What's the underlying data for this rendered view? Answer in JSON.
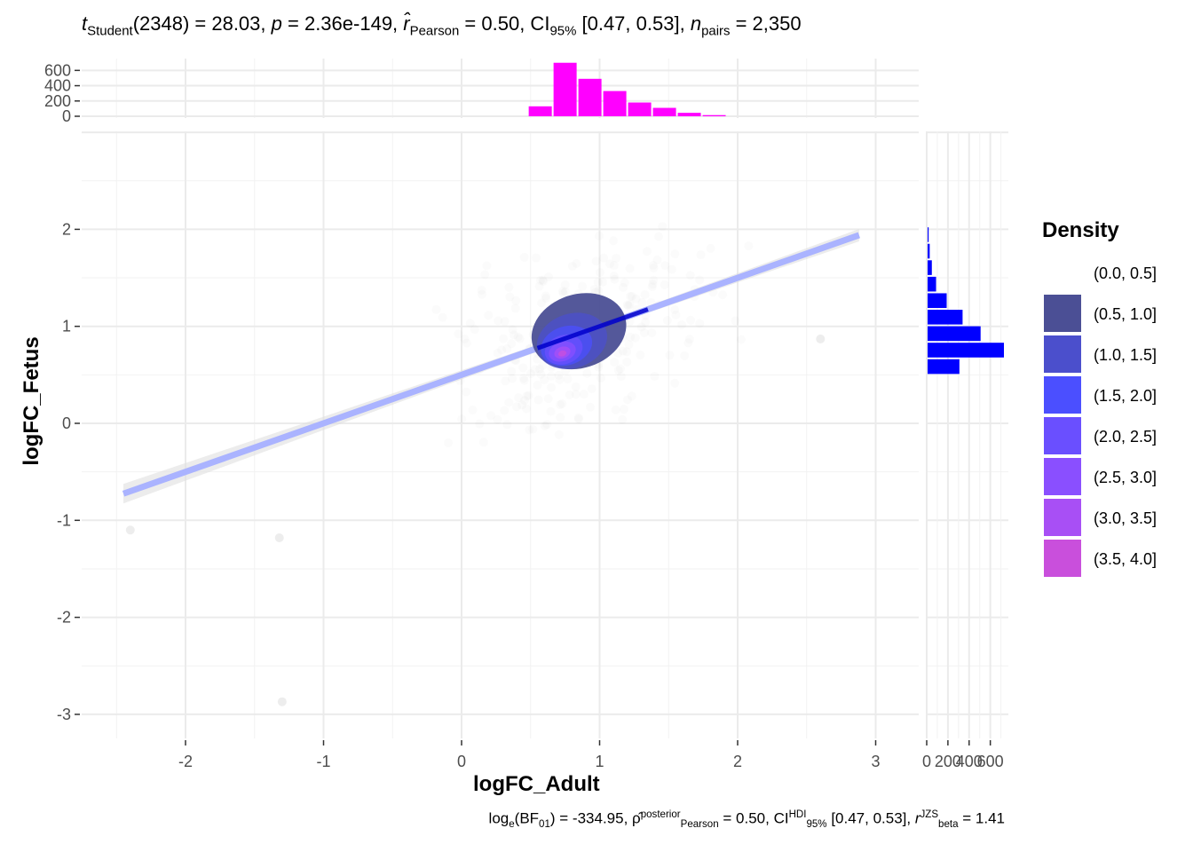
{
  "subtitle": {
    "t_sym": "t",
    "t_sub": "Student",
    "df": "(2348) = 28.03, ",
    "p_sym": "p",
    "p_val": " = 2.36e-149, ",
    "r_sym": "r̂",
    "r_sub": "Pearson",
    "r_val": " = 0.50, CI",
    "ci_sub": "95%",
    "ci_val": " [0.47, 0.53], ",
    "n_sym": "n",
    "n_sub": "pairs",
    "n_val": " = 2,350"
  },
  "caption": {
    "log_pre": "log",
    "log_sub": "e",
    "bf": "(BF",
    "bf_sub": "01",
    "bf_val": ") = -334.95, ",
    "rho_sym": "ρ̂",
    "rho_sup": "posterior",
    "rho_sub": "Pearson",
    "rho_val": " = 0.50, CI",
    "hdi_sup": "HDI",
    "hdi_sub": "95%",
    "hdi_val": " [0.47, 0.53], ",
    "rjzs_sym": "r",
    "rjzs_sup": "JZS",
    "rjzs_sub": "beta",
    "rjzs_val": " = 1.41"
  },
  "chart_data": {
    "type": "scatter",
    "xlabel": "logFC_Adult",
    "ylabel": "logFC_Fetus",
    "xlim": [
      -2.5,
      3.3
    ],
    "ylim": [
      -3.3,
      3.0
    ],
    "x_ticks": [
      -2,
      -1,
      0,
      1,
      2,
      3
    ],
    "y_ticks": [
      -3,
      -2,
      -1,
      0,
      1,
      2
    ],
    "x_tick_labels": [
      "-2",
      "-1",
      "0",
      "1",
      "2",
      "3"
    ],
    "y_tick_labels": [
      "-3",
      "-2",
      "-1",
      "0",
      "1",
      "2"
    ],
    "grid": true,
    "regression": {
      "intercept": 0.5,
      "slope": 0.5,
      "x_range": [
        -2.45,
        2.88
      ],
      "color": "#aab3ff"
    },
    "density_contours": [
      {
        "level": "(0.5, 1.0]",
        "center": [
          0.85,
          0.95
        ],
        "rx": 0.35,
        "ry": 0.38
      },
      {
        "level": "(1.0, 1.5]",
        "center": [
          0.8,
          0.85
        ],
        "rx": 0.26,
        "ry": 0.28
      },
      {
        "level": "(1.5, 2.0]",
        "center": [
          0.76,
          0.8
        ],
        "rx": 0.19,
        "ry": 0.2
      },
      {
        "level": "(2.0, 2.5]",
        "center": [
          0.74,
          0.76
        ],
        "rx": 0.14,
        "ry": 0.15
      },
      {
        "level": "(2.5, 3.0]",
        "center": [
          0.73,
          0.74
        ],
        "rx": 0.1,
        "ry": 0.1
      },
      {
        "level": "(3.0, 3.5]",
        "center": [
          0.73,
          0.73
        ],
        "rx": 0.06,
        "ry": 0.06
      },
      {
        "level": "(3.5, 4.0]",
        "center": [
          0.73,
          0.72
        ],
        "rx": 0.03,
        "ry": 0.03
      }
    ],
    "outliers": [
      [
        2.6,
        0.87
      ],
      [
        -1.3,
        -2.87
      ],
      [
        -1.32,
        -1.18
      ],
      [
        -2.4,
        -1.1
      ]
    ],
    "x_marginal": {
      "color": "#ff00ff",
      "ylim": [
        0,
        720
      ],
      "y_ticks": [
        0,
        200,
        400,
        600
      ],
      "y_tick_labels": [
        "0",
        "200",
        "400",
        "600"
      ],
      "bins": [
        {
          "x0": 0.48,
          "x1": 0.66,
          "count": 130
        },
        {
          "x0": 0.66,
          "x1": 0.84,
          "count": 700
        },
        {
          "x0": 0.84,
          "x1": 1.02,
          "count": 490
        },
        {
          "x0": 1.02,
          "x1": 1.2,
          "count": 330
        },
        {
          "x0": 1.2,
          "x1": 1.38,
          "count": 180
        },
        {
          "x0": 1.38,
          "x1": 1.56,
          "count": 110
        },
        {
          "x0": 1.56,
          "x1": 1.74,
          "count": 45
        },
        {
          "x0": 1.74,
          "x1": 1.92,
          "count": 15
        }
      ]
    },
    "y_marginal": {
      "color": "#0000ff",
      "xlim": [
        0,
        720
      ],
      "x_ticks": [
        0,
        200,
        400,
        600
      ],
      "x_tick_labels": [
        "0",
        "200",
        "400",
        "600"
      ],
      "bins": [
        {
          "y0": 0.5,
          "y1": 0.67,
          "count": 300
        },
        {
          "y0": 0.67,
          "y1": 0.84,
          "count": 720
        },
        {
          "y0": 0.84,
          "y1": 1.01,
          "count": 500
        },
        {
          "y0": 1.01,
          "y1": 1.18,
          "count": 330
        },
        {
          "y0": 1.18,
          "y1": 1.35,
          "count": 180
        },
        {
          "y0": 1.35,
          "y1": 1.52,
          "count": 80
        },
        {
          "y0": 1.52,
          "y1": 1.69,
          "count": 40
        },
        {
          "y0": 1.69,
          "y1": 1.86,
          "count": 20
        },
        {
          "y0": 1.86,
          "y1": 2.03,
          "count": 10
        }
      ]
    },
    "legend": {
      "title": "Density",
      "placement": "right",
      "entries": [
        {
          "label": "(0.0, 0.5]",
          "color": "#ffffff"
        },
        {
          "label": "(0.5, 1.0]",
          "color": "#4b4f95"
        },
        {
          "label": "(1.0, 1.5]",
          "color": "#4b4fcc"
        },
        {
          "label": "(1.5, 2.0]",
          "color": "#4b4fff"
        },
        {
          "label": "(2.0, 2.5]",
          "color": "#6a4fff"
        },
        {
          "label": "(2.5, 3.0]",
          "color": "#8a4fff"
        },
        {
          "label": "(3.0, 3.5]",
          "color": "#a84ff5"
        },
        {
          "label": "(3.5, 4.0]",
          "color": "#c94fdc"
        }
      ]
    }
  }
}
